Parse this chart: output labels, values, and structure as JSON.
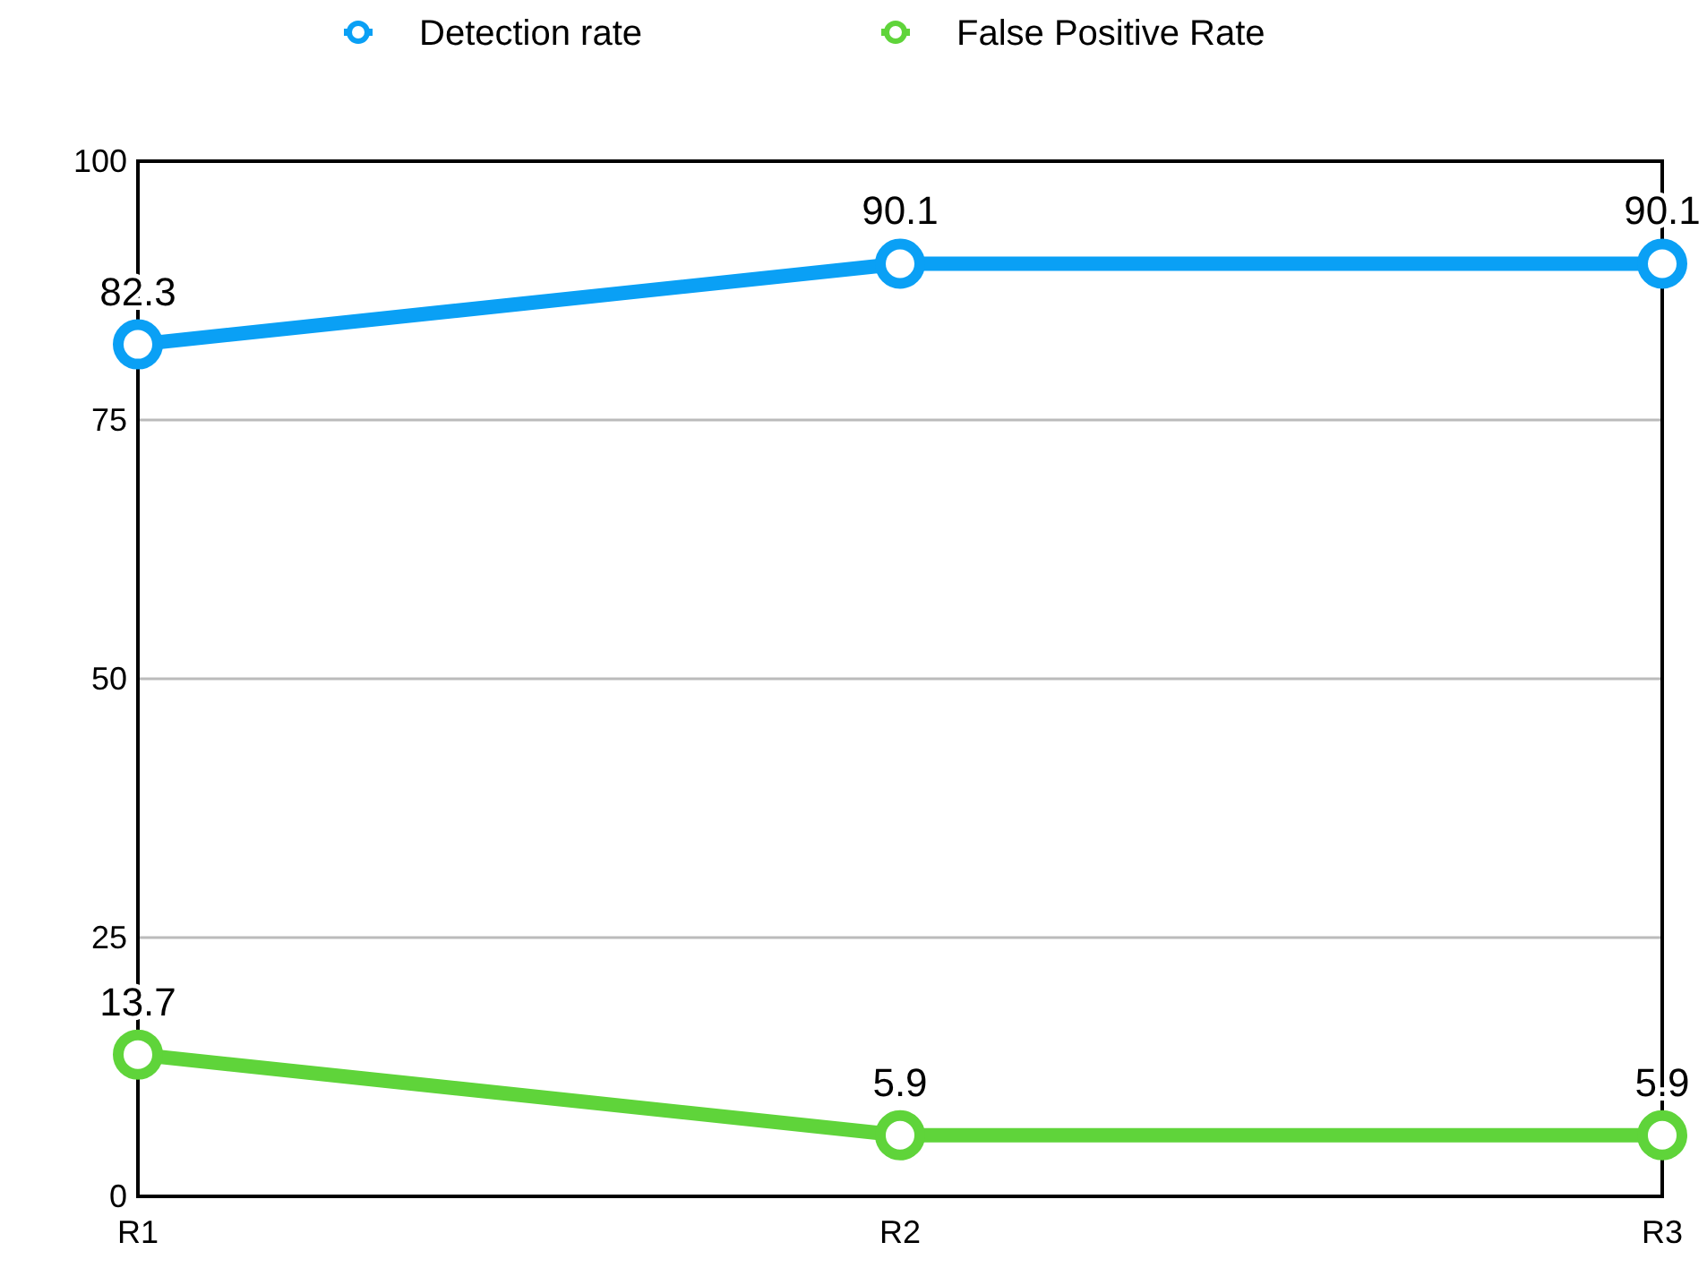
{
  "chart_data": {
    "type": "line",
    "categories": [
      "R1",
      "R2",
      "R3"
    ],
    "series": [
      {
        "name": "Detection rate",
        "color": "#0aa0f5",
        "values": [
          82.3,
          90.1,
          90.1
        ]
      },
      {
        "name": "False Positive Rate",
        "color": "#5fd43a",
        "values": [
          13.7,
          5.9,
          5.9
        ]
      }
    ],
    "ylim": [
      0,
      100
    ],
    "yticks": [
      0,
      25,
      50,
      75,
      100
    ],
    "grid": "y",
    "legend": "top",
    "marker": "circle",
    "line_style": "solid",
    "data_labels": true
  }
}
